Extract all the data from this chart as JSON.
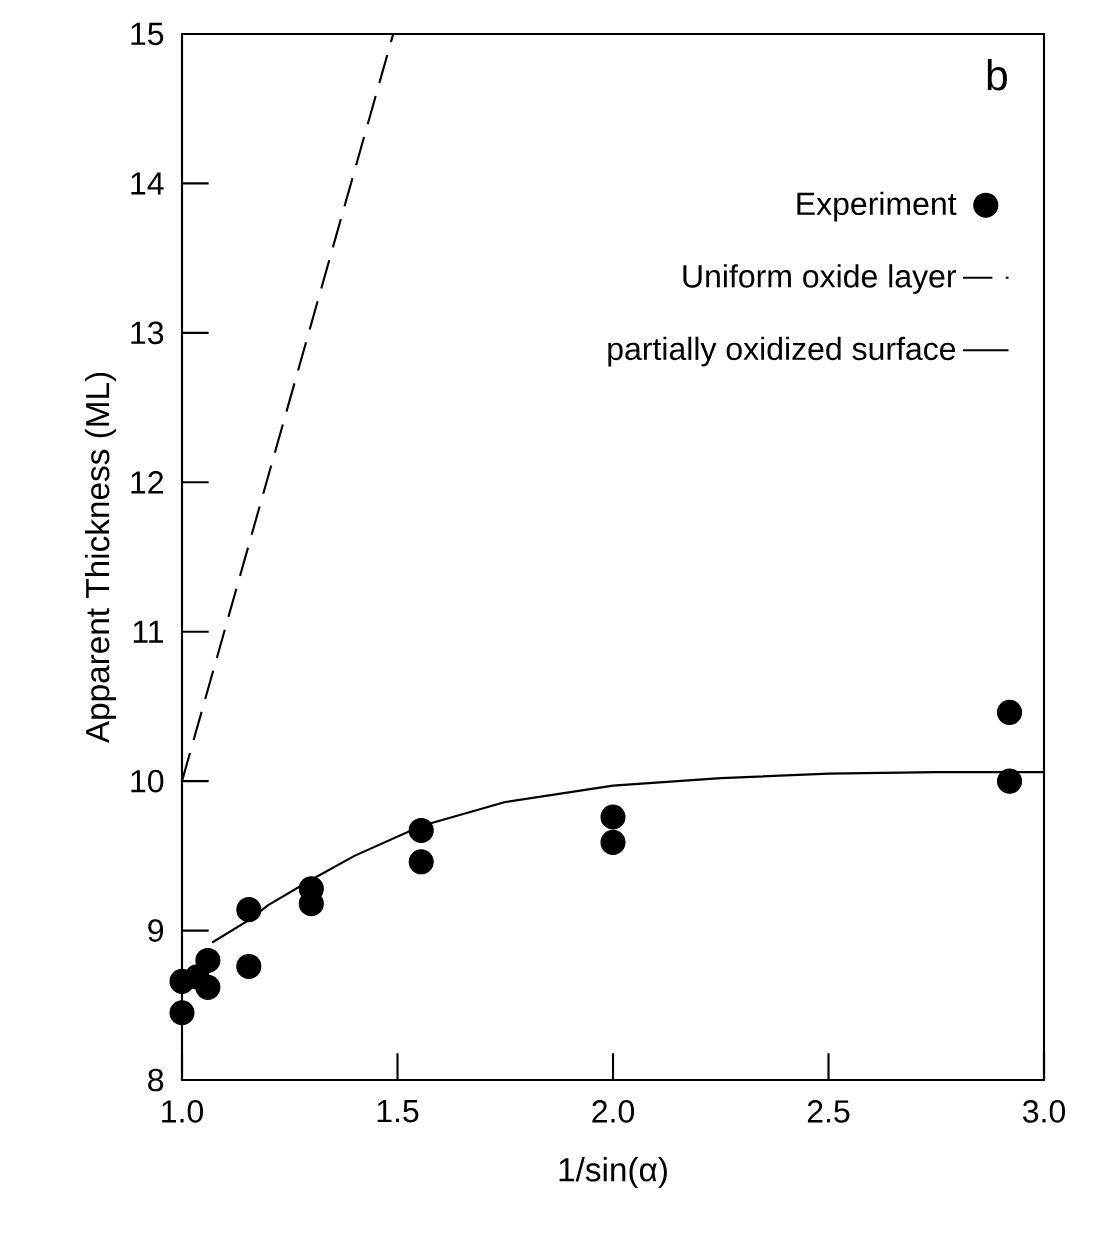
{
  "chart_data": {
    "type": "scatter",
    "xlabel": "1/sin(α)",
    "ylabel": "Apparent Thickness (ML)",
    "xlim": [
      1.0,
      3.0
    ],
    "ylim": [
      8,
      15
    ],
    "xticks": [
      {
        "value": 1.0,
        "label": "1.0"
      },
      {
        "value": 1.5,
        "label": "1.5"
      },
      {
        "value": 2.0,
        "label": "2.0"
      },
      {
        "value": 2.5,
        "label": "2.5"
      },
      {
        "value": 3.0,
        "label": "3.0"
      }
    ],
    "yticks": [
      8,
      9,
      10,
      11,
      12,
      13,
      14,
      15
    ],
    "legend": "top right",
    "grid": false,
    "annotations": [
      "b"
    ],
    "series": [
      {
        "name": "Experiment",
        "marker": "circle",
        "color": "#000000",
        "x": [
          1.0,
          1.0,
          1.035,
          1.06,
          1.06,
          1.155,
          1.155,
          1.3,
          1.3,
          1.555,
          1.555,
          2.0,
          2.0,
          2.92,
          2.92
        ],
        "values": [
          8.66,
          8.45,
          8.69,
          8.8,
          8.62,
          9.14,
          8.76,
          9.28,
          9.18,
          9.67,
          9.46,
          9.76,
          9.59,
          10.46,
          10.0
        ]
      },
      {
        "name": "Uniform oxide layer",
        "type": "line",
        "line_style": "dashed",
        "marker": "none",
        "color": "#000000",
        "x": [
          1.0,
          1.49
        ],
        "values": [
          10.0,
          15.0
        ]
      },
      {
        "name": "partially oxidized surface",
        "type": "line",
        "line_style": "solid",
        "marker": "none",
        "color": "#000000",
        "x": [
          1.07,
          1.155,
          1.2,
          1.3,
          1.4,
          1.555,
          1.75,
          2.0,
          2.25,
          2.5,
          2.75,
          3.0
        ],
        "values": [
          8.92,
          9.07,
          9.17,
          9.34,
          9.5,
          9.7,
          9.86,
          9.97,
          10.02,
          10.05,
          10.06,
          10.06
        ]
      }
    ]
  }
}
